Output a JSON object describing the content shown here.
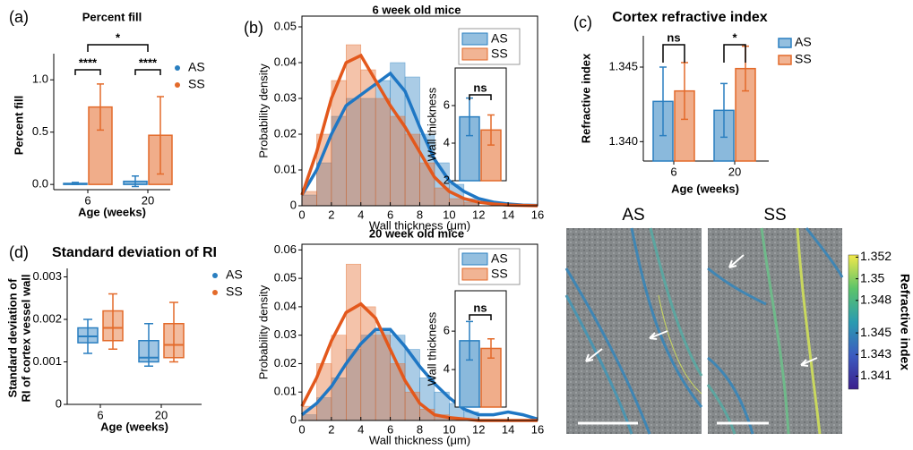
{
  "chart_data": [
    {
      "type": "bar",
      "panel": "(a)",
      "title": "Percent fill",
      "xlabel": "Age (weeks)",
      "ylabel": "Percent fill",
      "categories": [
        "6",
        "20"
      ],
      "series": [
        {
          "name": "AS",
          "color": "#2a7fc0",
          "values": [
            0.01,
            0.03
          ],
          "errors": [
            0.01,
            0.05
          ]
        },
        {
          "name": "SS",
          "color": "#e36a2a",
          "values": [
            0.74,
            0.47
          ],
          "errors": [
            0.22,
            0.37
          ]
        }
      ],
      "ylim": [
        -0.05,
        1.25
      ],
      "yticks": [
        {
          "value": 0,
          "label": "0.0"
        },
        {
          "value": 0.5,
          "label": "0.5"
        },
        {
          "value": 1,
          "label": "1.0"
        }
      ],
      "annotations": [
        "****",
        "****",
        "*"
      ]
    },
    {
      "type": "histogram",
      "panel": "(b)",
      "title": "6 week old mice",
      "xlabel": "Wall thickness (μm)",
      "ylabel": "Probability density",
      "bins": [
        0,
        1,
        2,
        3,
        4,
        5,
        6,
        7,
        8,
        9,
        10,
        11,
        12
      ],
      "series": [
        {
          "name": "AS",
          "color": "#2a7fc0",
          "values": [
            0.003,
            0.012,
            0.025,
            0.03,
            0.03,
            0.035,
            0.04,
            0.036,
            0.02,
            0.012,
            0.006,
            0.002
          ]
        },
        {
          "name": "SS",
          "color": "#e36a2a",
          "values": [
            0.004,
            0.02,
            0.035,
            0.045,
            0.038,
            0.03,
            0.025,
            0.02,
            0.012,
            0.005,
            0.002,
            0.001
          ]
        }
      ],
      "curve_x": [
        0,
        1,
        2,
        3,
        4,
        5,
        6,
        7,
        8,
        9,
        10,
        11,
        12,
        13,
        14,
        15,
        16
      ],
      "curves": [
        {
          "color": "#1f77c4",
          "values": [
            0.003,
            0.01,
            0.02,
            0.028,
            0.031,
            0.034,
            0.037,
            0.032,
            0.022,
            0.013,
            0.007,
            0.004,
            0.002,
            0.001,
            0.0005,
            0.0002,
            0.0001
          ]
        },
        {
          "color": "#e3581c",
          "values": [
            0.003,
            0.015,
            0.03,
            0.04,
            0.042,
            0.035,
            0.028,
            0.022,
            0.015,
            0.008,
            0.004,
            0.002,
            0.001,
            0.0005,
            0.0002,
            0.0001,
            0
          ]
        }
      ],
      "xlim": [
        0,
        16
      ],
      "xticks": [
        0,
        2,
        4,
        6,
        8,
        10,
        12,
        14,
        16
      ],
      "ylim": [
        0,
        0.053
      ],
      "yticks": [
        0,
        0.01,
        0.02,
        0.03,
        0.04,
        0.05
      ]
    },
    {
      "type": "bar",
      "ylabel": "Wall thickness",
      "categories": [
        null
      ],
      "series": [
        {
          "color": "#2a7fc0",
          "values": [
            5.4
          ],
          "errors": [
            1.0
          ]
        },
        {
          "color": "#e36a2a",
          "values": [
            4.7
          ],
          "errors": [
            0.8
          ]
        }
      ],
      "ylim": [
        2,
        8
      ],
      "yticks": [
        2,
        4,
        6
      ],
      "annotations": [
        "ns"
      ]
    },
    {
      "type": "histogram",
      "title": "20 week old mice",
      "xlabel": "Wall thickness (μm)",
      "ylabel": "Probability density",
      "bins": [
        0,
        1,
        2,
        3,
        4,
        5,
        6,
        7,
        8,
        9,
        10,
        11,
        12
      ],
      "series": [
        {
          "name": "AS",
          "color": "#2a7fc0",
          "values": [
            0.002,
            0.008,
            0.015,
            0.025,
            0.03,
            0.032,
            0.03,
            0.025,
            0.015,
            0.01,
            0.006,
            0.003
          ]
        },
        {
          "name": "SS",
          "color": "#e36a2a",
          "values": [
            0.005,
            0.02,
            0.03,
            0.055,
            0.04,
            0.03,
            0.02,
            0.01,
            0.004,
            0.002,
            0.001,
            0.0005
          ]
        }
      ],
      "curve_x": [
        0,
        1,
        2,
        3,
        4,
        5,
        6,
        7,
        8,
        9,
        10,
        11,
        12,
        13,
        14,
        15,
        16
      ],
      "curves": [
        {
          "color": "#1f77c4",
          "values": [
            0.002,
            0.006,
            0.012,
            0.02,
            0.027,
            0.032,
            0.032,
            0.026,
            0.019,
            0.013,
            0.008,
            0.004,
            0.002,
            0.002,
            0.003,
            0.002,
            0.0005
          ]
        },
        {
          "color": "#e3581c",
          "values": [
            0.005,
            0.015,
            0.028,
            0.038,
            0.041,
            0.036,
            0.025,
            0.014,
            0.006,
            0.002,
            0.001,
            0.0005,
            0,
            0,
            0,
            0,
            0
          ]
        }
      ],
      "xlim": [
        0,
        16
      ],
      "xticks": [
        0,
        2,
        4,
        6,
        8,
        10,
        12,
        14,
        16
      ],
      "ylim": [
        0,
        0.062
      ],
      "yticks": [
        0,
        0.01,
        0.02,
        0.03,
        0.04,
        0.05,
        0.06
      ]
    },
    {
      "type": "bar",
      "ylabel": "Wall thickness",
      "categories": [
        null
      ],
      "series": [
        {
          "color": "#2a7fc0",
          "values": [
            5.5
          ],
          "errors": [
            1.0
          ]
        },
        {
          "color": "#e36a2a",
          "values": [
            5.1
          ],
          "errors": [
            0.5
          ]
        }
      ],
      "ylim": [
        2.05,
        8.1
      ],
      "yticks": [
        4,
        6
      ],
      "annotations": [
        "ns"
      ]
    },
    {
      "type": "bar",
      "panel": "(c)",
      "title": "Cortex refractive index",
      "xlabel": "Age (weeks)",
      "ylabel": "Refractive index",
      "categories": [
        "6",
        "20"
      ],
      "series": [
        {
          "name": "AS",
          "color": "#2a7fc0",
          "values": [
            1.3427,
            1.3421
          ],
          "errors": [
            0.0023,
            0.0018
          ]
        },
        {
          "name": "SS",
          "color": "#e36a2a",
          "values": [
            1.3434,
            1.3449
          ],
          "errors": [
            0.0019,
            0.0015
          ]
        }
      ],
      "ylim": [
        1.3387,
        1.3471
      ],
      "yticks": [
        {
          "value": 1.34,
          "label": "1.340"
        },
        {
          "value": 1.345,
          "label": "1.345"
        }
      ],
      "annotations": [
        "ns",
        "*"
      ]
    },
    {
      "type": "box",
      "panel": "(d)",
      "title": "Standard deviation of RI",
      "xlabel": "Age (weeks)",
      "ylabel": [
        "Standard deviation of",
        "RI of cortex vessel wall"
      ],
      "categories": [
        "6",
        "20"
      ],
      "series": [
        {
          "name": "AS",
          "color": "#2a7fc0",
          "values": [
            [
              0.0012,
              0.00145,
              0.0016,
              0.0018,
              0.002
            ],
            [
              0.0009,
              0.001,
              0.0011,
              0.0015,
              0.0019
            ]
          ]
        },
        {
          "name": "SS",
          "color": "#e36a2a",
          "values": [
            [
              0.0013,
              0.0015,
              0.0018,
              0.0022,
              0.0026
            ],
            [
              0.001,
              0.0011,
              0.0014,
              0.0019,
              0.0024
            ]
          ]
        }
      ],
      "ylim": [
        0,
        0.0032
      ],
      "yticks": [
        0,
        0.001,
        0.002,
        0.003
      ]
    },
    {
      "type": "image",
      "labels": [
        "AS",
        "SS"
      ],
      "colorbar_label": "Refractive index",
      "clim": [
        1.3398,
        1.3522
      ],
      "cticks": [
        1.352,
        1.35,
        1.348,
        1.345,
        1.343,
        1.341
      ]
    }
  ]
}
